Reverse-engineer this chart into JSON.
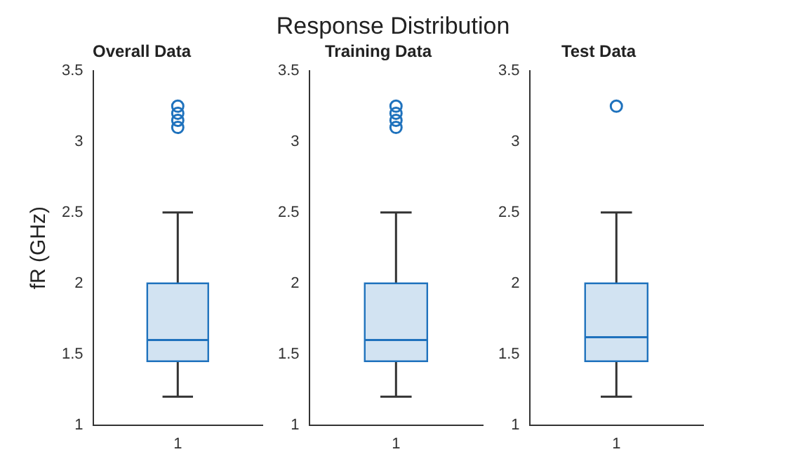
{
  "chart_data": [
    {
      "type": "box",
      "title": "Overall Data",
      "ylabel": "fR (GHz)",
      "annotations": [
        "Response Distribution"
      ],
      "categories": [
        "1"
      ],
      "color": "#1f72bd",
      "ylim": [
        1,
        3.5
      ],
      "yticks": [
        1,
        1.5,
        2,
        2.5,
        3,
        3.5
      ],
      "grid": false,
      "boxes": [
        {
          "low": 1.2,
          "q1": 1.45,
          "median": 1.6,
          "q3": 2,
          "high": 2.5,
          "outliers": [
            3.1,
            3.15,
            3.2,
            3.25
          ]
        }
      ]
    },
    {
      "type": "box",
      "title": "Training Data",
      "categories": [
        "1"
      ],
      "color": "#1f72bd",
      "ylim": [
        1,
        3.5
      ],
      "yticks": [
        1,
        1.5,
        2,
        2.5,
        3,
        3.5
      ],
      "grid": false,
      "boxes": [
        {
          "low": 1.2,
          "q1": 1.45,
          "median": 1.6,
          "q3": 2,
          "high": 2.5,
          "outliers": [
            3.1,
            3.15,
            3.2,
            3.25
          ]
        }
      ]
    },
    {
      "type": "box",
      "title": "Test Data",
      "categories": [
        "1"
      ],
      "color": "#1f72bd",
      "ylim": [
        1,
        3.5
      ],
      "yticks": [
        1,
        1.5,
        2,
        2.5,
        3,
        3.5
      ],
      "grid": false,
      "boxes": [
        {
          "low": 1.2,
          "q1": 1.45,
          "median": 1.62,
          "q3": 2,
          "high": 2.5,
          "outliers": [
            3.25
          ]
        }
      ]
    }
  ]
}
